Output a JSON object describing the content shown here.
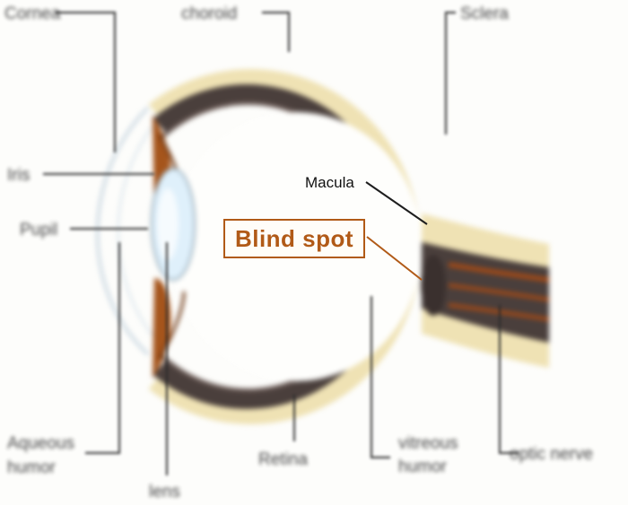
{
  "labels": {
    "cornea": "Cornea",
    "choroid": "choroid",
    "sclera": "Sclera",
    "iris": "Iris",
    "pupil": "Pupil",
    "macula": "Macula",
    "blind_spot": "Blind spot",
    "aqueous_humor": "Aqueous humor",
    "lens": "lens",
    "retina": "Retina",
    "vitreous_humor": "vitreous humor",
    "optic_nerve": "optic nerve"
  },
  "colors": {
    "sclera": "#efe2b4",
    "choroid": "#4a3f3c",
    "iris": "#a5551c",
    "lens": "#dff0fb",
    "nerve_fibers": "#a84a14",
    "highlight": "#b15a17"
  }
}
